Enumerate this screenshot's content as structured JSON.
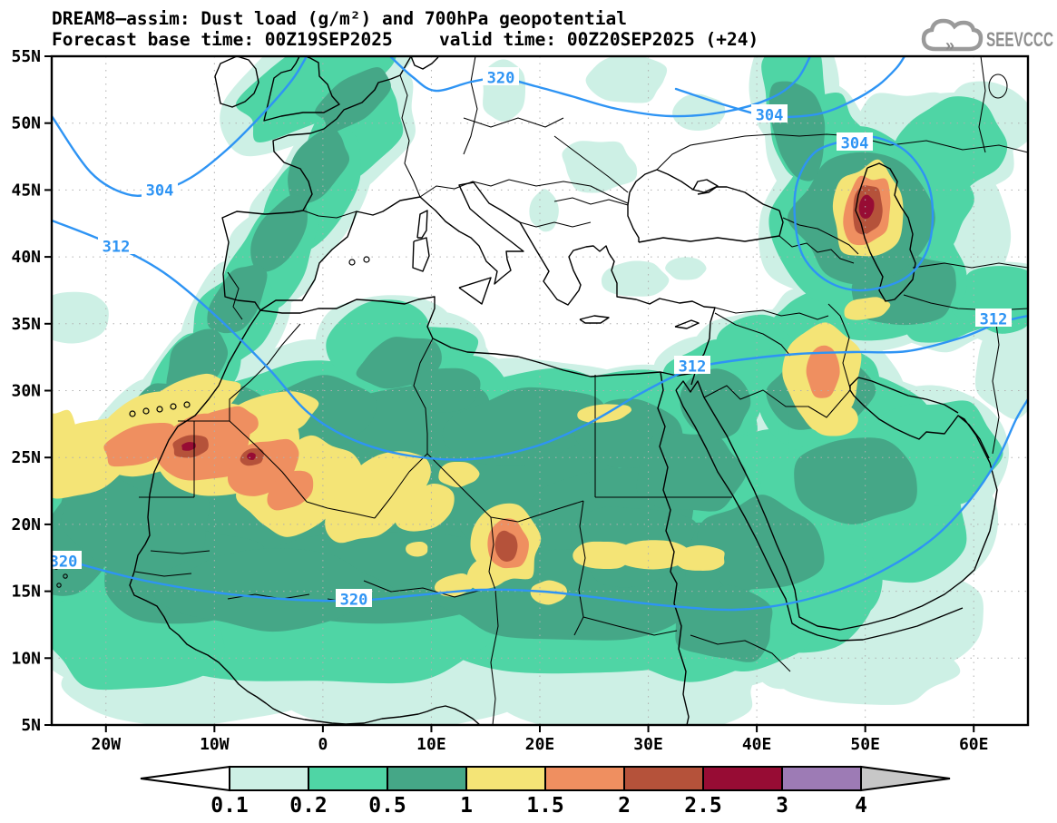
{
  "header": {
    "title_line1": "DREAM8–assim: Dust load (g/m²) and 700hPa geopotential",
    "title_line2_left": "Forecast base time: 00Z19SEP2025",
    "title_line2_right": "valid time: 00Z20SEP2025 (+24)",
    "logo_text": "SEEVCCC"
  },
  "map": {
    "lat_ticks": [
      "55N",
      "50N",
      "45N",
      "40N",
      "35N",
      "30N",
      "25N",
      "20N",
      "15N",
      "10N",
      "5N"
    ],
    "lon_ticks": [
      "20W",
      "10W",
      "0",
      "10E",
      "20E",
      "30E",
      "40E",
      "50E",
      "60E"
    ]
  },
  "colorbar": {
    "tick_labels": [
      "0.1",
      "0.2",
      "0.5",
      "1",
      "1.5",
      "2",
      "2.5",
      "3",
      "4"
    ],
    "segment_colors": [
      "#cdf0e5",
      "#4fd5a5",
      "#45a787",
      "#f4e476",
      "#ef8f60",
      "#b5523a",
      "#970c34",
      "#9d7bb5"
    ],
    "arrow_left_color": "#ffffff",
    "arrow_right_color": "#c7c7c7"
  },
  "chart_data": {
    "type": "heatmap",
    "title": "DREAM8–assim: Dust load (g/m²) and 700hPa geopotential",
    "model": "DREAM8-assim",
    "field_shaded": "Dust load (g/m²)",
    "field_contour": "700hPa geopotential",
    "forecast_base_time": "00Z19SEP2025",
    "valid_time": "00Z20SEP2025 (+24)",
    "lat_axis": [
      "5N",
      "10N",
      "15N",
      "20N",
      "25N",
      "30N",
      "35N",
      "40N",
      "45N",
      "50N",
      "55N"
    ],
    "lon_axis": [
      "20W",
      "10W",
      "0",
      "10E",
      "20E",
      "30E",
      "40E",
      "50E",
      "60E"
    ],
    "shade_levels": [
      0.1,
      0.2,
      0.5,
      1,
      1.5,
      2,
      2.5,
      3,
      4
    ],
    "palette": [
      "#cdf0e5",
      "#4fd5a5",
      "#45a787",
      "#f4e476",
      "#ef8f60",
      "#b5523a",
      "#970c34",
      "#9d7bb5"
    ],
    "contour_levels_visible": [
      "304",
      "312",
      "320"
    ],
    "contour_color": "#2e94f4",
    "grid": true,
    "legend_position": "bottom",
    "dust_maxima": [
      {
        "area": "Caucasus / Caspian lowland (~43N, 49E)",
        "peak_band": "2.5–3"
      },
      {
        "area": "Western Sahara / Mauritania (~26N, 12W)",
        "peak_band": "2.5–3"
      },
      {
        "area": "Northern Mali (~25N, 7W)",
        "peak_band": "2.5–3"
      },
      {
        "area": "Chad / Bodélé (~18N, 16E)",
        "peak_band": "2–2.5"
      },
      {
        "area": "Iraq / Mesopotamia (~32N, 45E)",
        "peak_band": "1.5–2"
      }
    ]
  }
}
